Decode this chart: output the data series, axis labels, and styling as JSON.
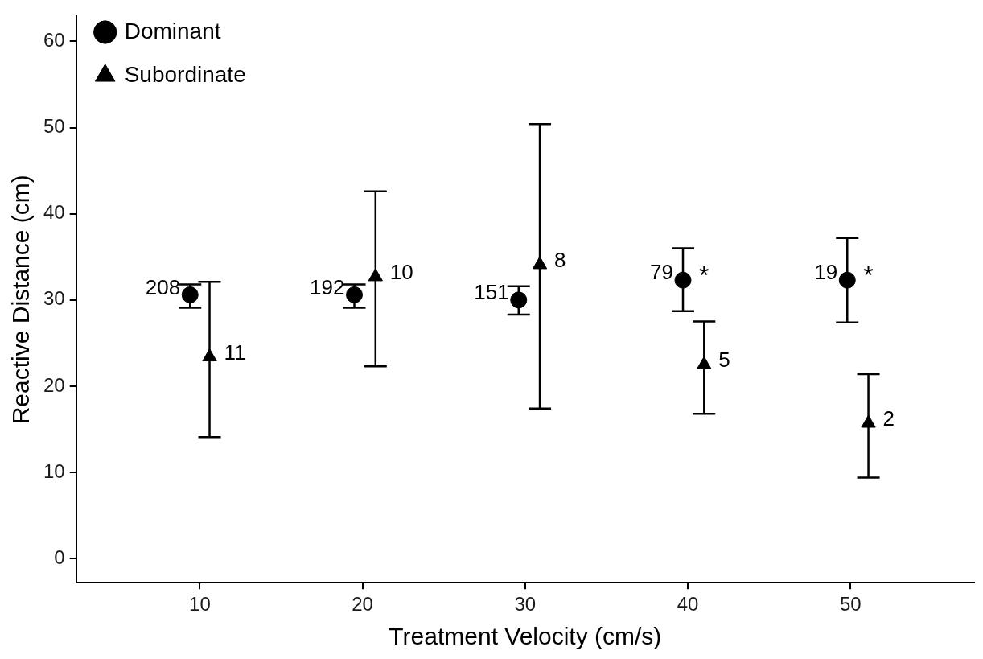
{
  "chart_data": {
    "type": "scatter",
    "xlabel": "Treatment Velocity (cm/s)",
    "ylabel": "Reactive Distance (cm)",
    "xlim": [
      2.4,
      57.6
    ],
    "xticks": [
      10,
      20,
      30,
      40,
      50
    ],
    "ylim": [
      -2.8,
      62.9
    ],
    "yticks": [
      0,
      10,
      20,
      30,
      40,
      50,
      60
    ],
    "grid": false,
    "legend": "top left",
    "series": [
      {
        "name": "Dominant",
        "color": "#000000",
        "marker": "circle",
        "x": [
          9.4,
          19.5,
          29.6,
          39.7,
          49.8
        ],
        "values": [
          30.6,
          30.6,
          30.0,
          32.3,
          32.3
        ],
        "errors": [
          [
            29.1,
            31.8
          ],
          [
            29.1,
            31.8
          ],
          [
            28.3,
            31.6
          ],
          [
            28.7,
            36.0
          ],
          [
            27.4,
            37.2
          ]
        ]
      },
      {
        "name": "Subordinate",
        "color": "#000000",
        "marker": "triangle",
        "x": [
          10.6,
          20.8,
          30.9,
          41.0,
          51.1
        ],
        "values": [
          23.4,
          32.7,
          34.1,
          22.5,
          15.7
        ],
        "errors": [
          [
            14.1,
            32.1
          ],
          [
            22.3,
            42.6
          ],
          [
            17.4,
            50.4
          ],
          [
            16.8,
            27.5
          ],
          [
            9.4,
            21.4
          ]
        ]
      }
    ],
    "annotations": [
      {
        "text": "208",
        "x": 9.4,
        "y": 30.6
      },
      {
        "text": "11",
        "x": 10.6,
        "y": 23.4
      },
      {
        "text": "192",
        "x": 19.5,
        "y": 30.6
      },
      {
        "text": "10",
        "x": 20.8,
        "y": 32.7
      },
      {
        "text": "151",
        "x": 29.6,
        "y": 30.0
      },
      {
        "text": "8",
        "x": 30.9,
        "y": 34.1
      },
      {
        "text": "79",
        "x": 39.7,
        "y": 32.3
      },
      {
        "text": "*",
        "x": 39.7,
        "y": 32.3
      },
      {
        "text": "5",
        "x": 41.0,
        "y": 22.5
      },
      {
        "text": "19",
        "x": 49.8,
        "y": 32.3
      },
      {
        "text": "*",
        "x": 49.8,
        "y": 32.3
      },
      {
        "text": "2",
        "x": 51.1,
        "y": 15.7
      }
    ]
  }
}
